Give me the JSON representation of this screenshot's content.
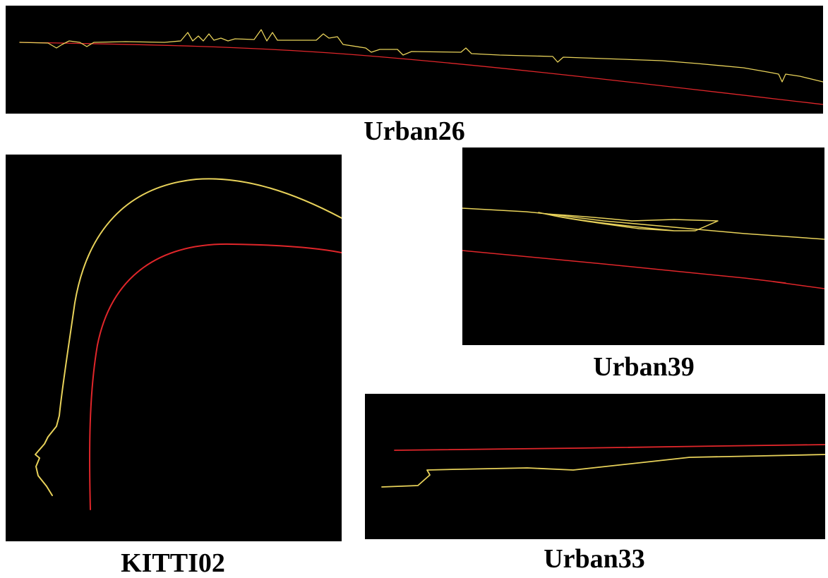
{
  "colors": {
    "background": "#000000",
    "estimated_trajectory": "#e8d25a",
    "ground_truth_trajectory": "#e0262a"
  },
  "panels": [
    {
      "id": "urban26",
      "caption": "Urban26"
    },
    {
      "id": "kitti02",
      "caption": "KITTI02"
    },
    {
      "id": "urban39",
      "caption": "Urban39"
    },
    {
      "id": "urban33",
      "caption": "Urban33"
    }
  ]
}
